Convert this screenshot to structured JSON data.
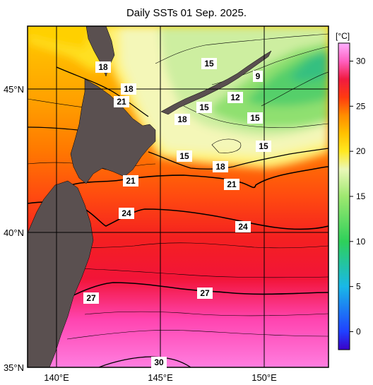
{
  "title": "Daily SSTs 01 Sep. 2025.",
  "lat_labels": [
    "45°N",
    "40°N",
    "35°N"
  ],
  "lon_labels": [
    "140°E",
    "145°E",
    "150°E"
  ],
  "colorbar": {
    "unit": "[°C]",
    "ticks": [
      "30",
      "25",
      "20",
      "15",
      "10",
      "5",
      "0"
    ],
    "range": [
      -2,
      32
    ],
    "stops": [
      {
        "t": -2,
        "color": "#3a00c8"
      },
      {
        "t": 0,
        "color": "#2040ff"
      },
      {
        "t": 5,
        "color": "#19b8e8"
      },
      {
        "t": 10,
        "color": "#2ed05a"
      },
      {
        "t": 15,
        "color": "#9ee870"
      },
      {
        "t": 18,
        "color": "#eaf7b8"
      },
      {
        "t": 20,
        "color": "#ffe820"
      },
      {
        "t": 22,
        "color": "#ffc000"
      },
      {
        "t": 24,
        "color": "#ff8c00"
      },
      {
        "t": 26,
        "color": "#ff3a10"
      },
      {
        "t": 28,
        "color": "#f01a40"
      },
      {
        "t": 30,
        "color": "#ff60c0"
      },
      {
        "t": 32,
        "color": "#ffb0ff"
      }
    ]
  },
  "contour_labels": [
    "18",
    "15",
    "9",
    "18",
    "12",
    "21",
    "18",
    "15",
    "15",
    "15",
    "15",
    "18",
    "21",
    "21",
    "24",
    "24",
    "27",
    "27",
    "30"
  ],
  "colors": {
    "land": "#5a5050",
    "frame": "#000000"
  }
}
